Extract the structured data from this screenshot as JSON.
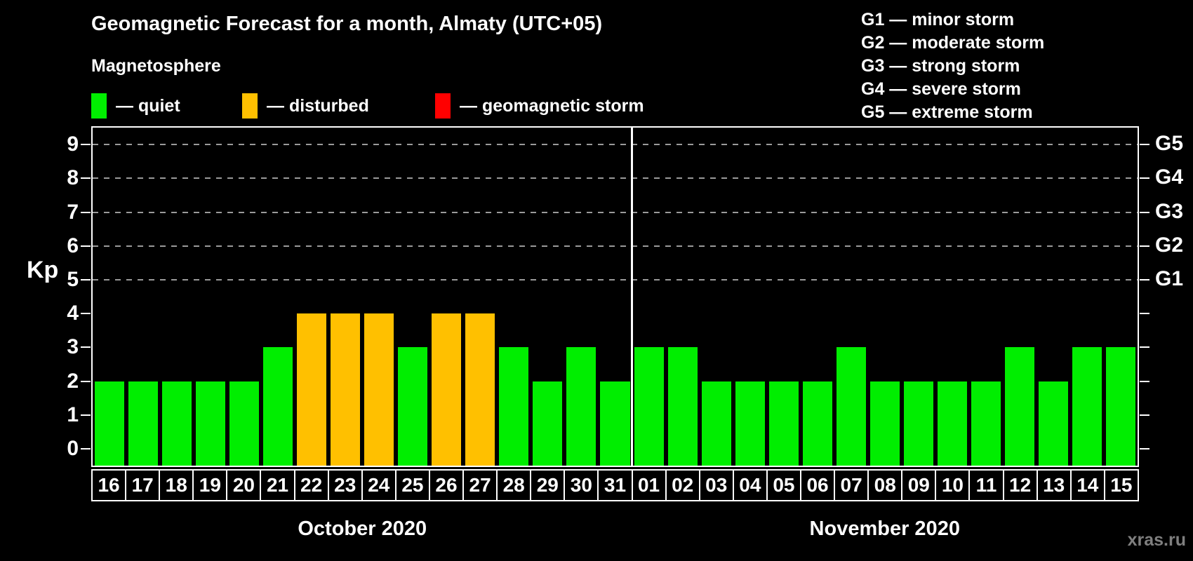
{
  "title": "Geomagnetic Forecast for a month, Almaty (UTC+05)",
  "subtitle": "Magnetosphere",
  "watermark": "xras.ru",
  "legend": {
    "items": [
      {
        "key": "quiet",
        "label": "— quiet",
        "color": "#00ee00"
      },
      {
        "key": "disturbed",
        "label": "— disturbed",
        "color": "#ffc000"
      },
      {
        "key": "storm",
        "label": "— geomagnetic storm",
        "color": "#ff0000"
      }
    ]
  },
  "storm_scale_legend": [
    "G1 — minor storm",
    "G2 — moderate storm",
    "G3 — strong storm",
    "G4 — severe storm",
    "G5 — extreme storm"
  ],
  "chart_data": {
    "type": "bar",
    "ylabel": "Kp",
    "ylim": [
      -0.5,
      9.5
    ],
    "y_ticks": [
      0,
      1,
      2,
      3,
      4,
      5,
      6,
      7,
      8,
      9
    ],
    "gridlines_kp": [
      5,
      6,
      7,
      8,
      9
    ],
    "grid": "dashed-horizontal",
    "right_axis_labels": [
      {
        "label": "G1",
        "kp": 5
      },
      {
        "label": "G2",
        "kp": 6
      },
      {
        "label": "G3",
        "kp": 7
      },
      {
        "label": "G4",
        "kp": 8
      },
      {
        "label": "G5",
        "kp": 9
      }
    ],
    "months": [
      {
        "label": "October 2020",
        "days": [
          {
            "day": "16",
            "kp": 2,
            "status": "quiet"
          },
          {
            "day": "17",
            "kp": 2,
            "status": "quiet"
          },
          {
            "day": "18",
            "kp": 2,
            "status": "quiet"
          },
          {
            "day": "19",
            "kp": 2,
            "status": "quiet"
          },
          {
            "day": "20",
            "kp": 2,
            "status": "quiet"
          },
          {
            "day": "21",
            "kp": 3,
            "status": "quiet"
          },
          {
            "day": "22",
            "kp": 4,
            "status": "disturbed"
          },
          {
            "day": "23",
            "kp": 4,
            "status": "disturbed"
          },
          {
            "day": "24",
            "kp": 4,
            "status": "disturbed"
          },
          {
            "day": "25",
            "kp": 3,
            "status": "quiet"
          },
          {
            "day": "26",
            "kp": 4,
            "status": "disturbed"
          },
          {
            "day": "27",
            "kp": 4,
            "status": "disturbed"
          },
          {
            "day": "28",
            "kp": 3,
            "status": "quiet"
          },
          {
            "day": "29",
            "kp": 2,
            "status": "quiet"
          },
          {
            "day": "30",
            "kp": 3,
            "status": "quiet"
          },
          {
            "day": "31",
            "kp": 2,
            "status": "quiet"
          }
        ]
      },
      {
        "label": "November 2020",
        "days": [
          {
            "day": "01",
            "kp": 3,
            "status": "quiet"
          },
          {
            "day": "02",
            "kp": 3,
            "status": "quiet"
          },
          {
            "day": "03",
            "kp": 2,
            "status": "quiet"
          },
          {
            "day": "04",
            "kp": 2,
            "status": "quiet"
          },
          {
            "day": "05",
            "kp": 2,
            "status": "quiet"
          },
          {
            "day": "06",
            "kp": 2,
            "status": "quiet"
          },
          {
            "day": "07",
            "kp": 3,
            "status": "quiet"
          },
          {
            "day": "08",
            "kp": 2,
            "status": "quiet"
          },
          {
            "day": "09",
            "kp": 2,
            "status": "quiet"
          },
          {
            "day": "10",
            "kp": 2,
            "status": "quiet"
          },
          {
            "day": "11",
            "kp": 2,
            "status": "quiet"
          },
          {
            "day": "12",
            "kp": 3,
            "status": "quiet"
          },
          {
            "day": "13",
            "kp": 2,
            "status": "quiet"
          },
          {
            "day": "14",
            "kp": 3,
            "status": "quiet"
          },
          {
            "day": "15",
            "kp": 3,
            "status": "quiet"
          }
        ]
      }
    ]
  }
}
